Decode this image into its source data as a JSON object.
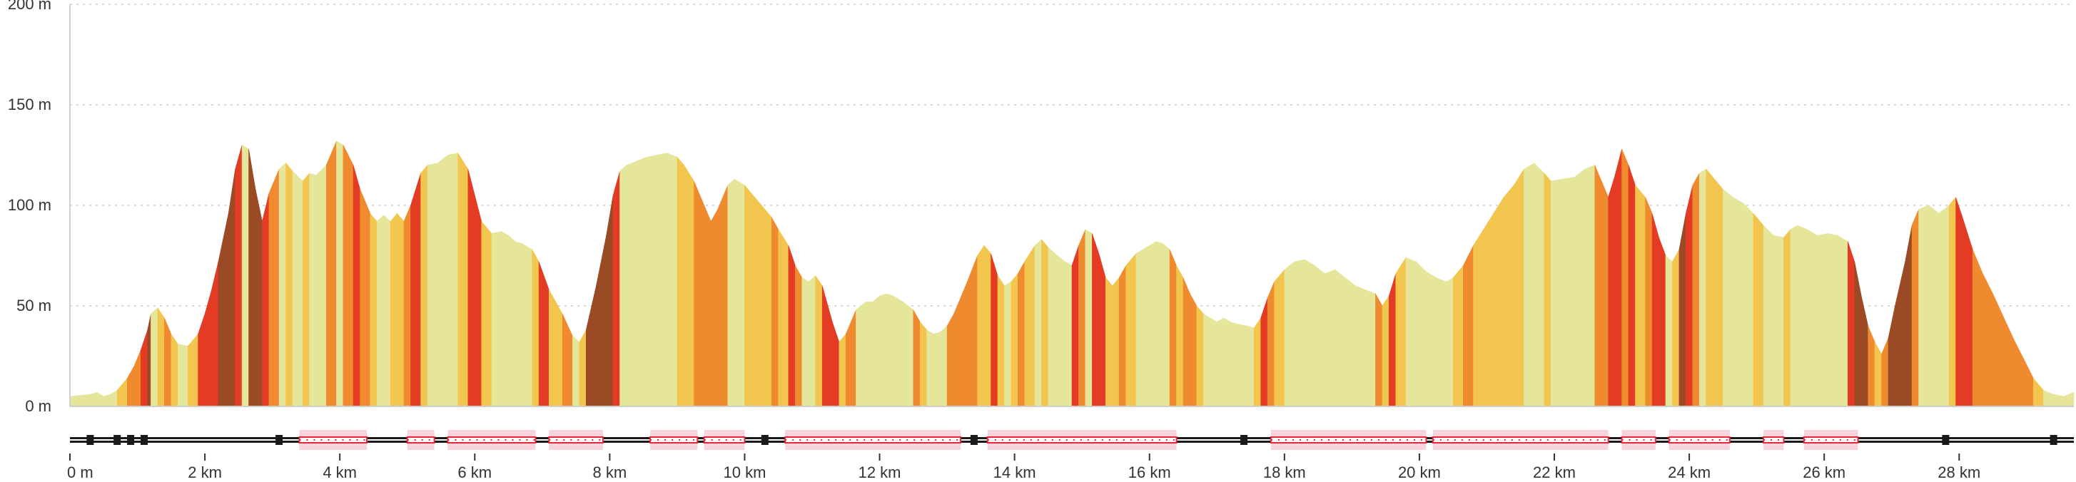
{
  "chart_data": {
    "type": "area",
    "title": "",
    "xlabel": "",
    "ylabel": "",
    "xlim": [
      0,
      29.7
    ],
    "ylim": [
      0,
      200
    ],
    "y_ticks": [
      {
        "value": 0,
        "label": "0 m"
      },
      {
        "value": 50,
        "label": "50 m"
      },
      {
        "value": 100,
        "label": "100 m"
      },
      {
        "value": 150,
        "label": "150 m"
      },
      {
        "value": 200,
        "label": "200 m"
      }
    ],
    "x_ticks": [
      {
        "value": 0,
        "label": "0 m"
      },
      {
        "value": 2,
        "label": "2 km"
      },
      {
        "value": 4,
        "label": "4 km"
      },
      {
        "value": 6,
        "label": "6 km"
      },
      {
        "value": 8,
        "label": "8 km"
      },
      {
        "value": 10,
        "label": "10 km"
      },
      {
        "value": 12,
        "label": "12 km"
      },
      {
        "value": 14,
        "label": "14 km"
      },
      {
        "value": 16,
        "label": "16 km"
      },
      {
        "value": 18,
        "label": "18 km"
      },
      {
        "value": 20,
        "label": "20 km"
      },
      {
        "value": 22,
        "label": "22 km"
      },
      {
        "value": 24,
        "label": "24 km"
      },
      {
        "value": 26,
        "label": "26 km"
      },
      {
        "value": 28,
        "label": "28 km"
      }
    ],
    "grid": true,
    "elevation_profile": [
      [
        0,
        5
      ],
      [
        0.3,
        6
      ],
      [
        0.4,
        7
      ],
      [
        0.5,
        5
      ],
      [
        0.6,
        6
      ],
      [
        0.7,
        8
      ],
      [
        0.85,
        14
      ],
      [
        0.95,
        20
      ],
      [
        1.05,
        28
      ],
      [
        1.15,
        38
      ],
      [
        1.2,
        46
      ],
      [
        1.3,
        49
      ],
      [
        1.4,
        44
      ],
      [
        1.5,
        36
      ],
      [
        1.6,
        31
      ],
      [
        1.75,
        30
      ],
      [
        1.9,
        36
      ],
      [
        2.0,
        46
      ],
      [
        2.1,
        58
      ],
      [
        2.2,
        72
      ],
      [
        2.35,
        96
      ],
      [
        2.45,
        118
      ],
      [
        2.55,
        130
      ],
      [
        2.65,
        128
      ],
      [
        2.75,
        108
      ],
      [
        2.85,
        92
      ],
      [
        2.95,
        106
      ],
      [
        3.1,
        118
      ],
      [
        3.2,
        121
      ],
      [
        3.3,
        117
      ],
      [
        3.45,
        112
      ],
      [
        3.55,
        116
      ],
      [
        3.65,
        115
      ],
      [
        3.8,
        120
      ],
      [
        3.95,
        132
      ],
      [
        4.05,
        130
      ],
      [
        4.2,
        120
      ],
      [
        4.3,
        108
      ],
      [
        4.45,
        96
      ],
      [
        4.55,
        92
      ],
      [
        4.65,
        95
      ],
      [
        4.75,
        92
      ],
      [
        4.85,
        96
      ],
      [
        4.95,
        92
      ],
      [
        5.05,
        100
      ],
      [
        5.2,
        116
      ],
      [
        5.3,
        120
      ],
      [
        5.45,
        121
      ],
      [
        5.6,
        125
      ],
      [
        5.75,
        126
      ],
      [
        5.9,
        118
      ],
      [
        6.0,
        105
      ],
      [
        6.1,
        92
      ],
      [
        6.25,
        86
      ],
      [
        6.4,
        87
      ],
      [
        6.5,
        85
      ],
      [
        6.6,
        82
      ],
      [
        6.7,
        81
      ],
      [
        6.85,
        78
      ],
      [
        6.95,
        72
      ],
      [
        7.1,
        58
      ],
      [
        7.3,
        46
      ],
      [
        7.45,
        35
      ],
      [
        7.55,
        32
      ],
      [
        7.65,
        38
      ],
      [
        7.8,
        60
      ],
      [
        7.95,
        85
      ],
      [
        8.05,
        105
      ],
      [
        8.15,
        117
      ],
      [
        8.25,
        120
      ],
      [
        8.4,
        122
      ],
      [
        8.55,
        124
      ],
      [
        8.7,
        125
      ],
      [
        8.85,
        126
      ],
      [
        9.0,
        124
      ],
      [
        9.1,
        120
      ],
      [
        9.25,
        112
      ],
      [
        9.4,
        100
      ],
      [
        9.5,
        92
      ],
      [
        9.6,
        98
      ],
      [
        9.75,
        110
      ],
      [
        9.85,
        113
      ],
      [
        10.0,
        110
      ],
      [
        10.1,
        106
      ],
      [
        10.25,
        100
      ],
      [
        10.4,
        94
      ],
      [
        10.5,
        88
      ],
      [
        10.65,
        80
      ],
      [
        10.75,
        70
      ],
      [
        10.85,
        64
      ],
      [
        10.95,
        62
      ],
      [
        11.05,
        65
      ],
      [
        11.15,
        60
      ],
      [
        11.3,
        42
      ],
      [
        11.4,
        32
      ],
      [
        11.5,
        36
      ],
      [
        11.65,
        48
      ],
      [
        11.8,
        52
      ],
      [
        11.9,
        52
      ],
      [
        12.0,
        55
      ],
      [
        12.1,
        56
      ],
      [
        12.2,
        55
      ],
      [
        12.35,
        52
      ],
      [
        12.5,
        48
      ],
      [
        12.6,
        42
      ],
      [
        12.7,
        38
      ],
      [
        12.8,
        36
      ],
      [
        12.9,
        37
      ],
      [
        13.0,
        40
      ],
      [
        13.1,
        46
      ],
      [
        13.2,
        54
      ],
      [
        13.3,
        62
      ],
      [
        13.45,
        75
      ],
      [
        13.55,
        80
      ],
      [
        13.65,
        76
      ],
      [
        13.75,
        65
      ],
      [
        13.85,
        60
      ],
      [
        13.95,
        62
      ],
      [
        14.05,
        66
      ],
      [
        14.15,
        72
      ],
      [
        14.3,
        80
      ],
      [
        14.4,
        83
      ],
      [
        14.5,
        79
      ],
      [
        14.6,
        76
      ],
      [
        14.75,
        72
      ],
      [
        14.85,
        70
      ],
      [
        14.95,
        80
      ],
      [
        15.05,
        88
      ],
      [
        15.15,
        86
      ],
      [
        15.25,
        76
      ],
      [
        15.35,
        64
      ],
      [
        15.45,
        60
      ],
      [
        15.55,
        64
      ],
      [
        15.65,
        70
      ],
      [
        15.8,
        76
      ],
      [
        15.95,
        79
      ],
      [
        16.1,
        82
      ],
      [
        16.2,
        81
      ],
      [
        16.3,
        78
      ],
      [
        16.4,
        70
      ],
      [
        16.5,
        64
      ],
      [
        16.6,
        56
      ],
      [
        16.7,
        50
      ],
      [
        16.8,
        46
      ],
      [
        16.9,
        44
      ],
      [
        17.0,
        42
      ],
      [
        17.1,
        44
      ],
      [
        17.2,
        42
      ],
      [
        17.3,
        41
      ],
      [
        17.45,
        40
      ],
      [
        17.55,
        39
      ],
      [
        17.65,
        44
      ],
      [
        17.75,
        54
      ],
      [
        17.85,
        62
      ],
      [
        18.0,
        68
      ],
      [
        18.15,
        72
      ],
      [
        18.3,
        73
      ],
      [
        18.45,
        70
      ],
      [
        18.6,
        66
      ],
      [
        18.75,
        68
      ],
      [
        18.9,
        64
      ],
      [
        19.05,
        60
      ],
      [
        19.2,
        58
      ],
      [
        19.35,
        56
      ],
      [
        19.45,
        50
      ],
      [
        19.55,
        55
      ],
      [
        19.65,
        66
      ],
      [
        19.8,
        74
      ],
      [
        19.95,
        72
      ],
      [
        20.1,
        67
      ],
      [
        20.25,
        64
      ],
      [
        20.4,
        62
      ],
      [
        20.5,
        64
      ],
      [
        20.65,
        70
      ],
      [
        20.8,
        80
      ],
      [
        20.95,
        88
      ],
      [
        21.1,
        96
      ],
      [
        21.25,
        104
      ],
      [
        21.4,
        110
      ],
      [
        21.55,
        118
      ],
      [
        21.7,
        121
      ],
      [
        21.85,
        116
      ],
      [
        21.95,
        112
      ],
      [
        22.1,
        113
      ],
      [
        22.3,
        114
      ],
      [
        22.45,
        118
      ],
      [
        22.6,
        120
      ],
      [
        22.7,
        112
      ],
      [
        22.8,
        104
      ],
      [
        22.9,
        115
      ],
      [
        23.0,
        128
      ],
      [
        23.1,
        120
      ],
      [
        23.2,
        110
      ],
      [
        23.35,
        104
      ],
      [
        23.45,
        96
      ],
      [
        23.55,
        84
      ],
      [
        23.65,
        75
      ],
      [
        23.75,
        72
      ],
      [
        23.85,
        78
      ],
      [
        23.95,
        96
      ],
      [
        24.05,
        110
      ],
      [
        24.15,
        116
      ],
      [
        24.25,
        118
      ],
      [
        24.35,
        114
      ],
      [
        24.5,
        108
      ],
      [
        24.65,
        104
      ],
      [
        24.8,
        101
      ],
      [
        24.95,
        96
      ],
      [
        25.1,
        90
      ],
      [
        25.25,
        85
      ],
      [
        25.4,
        84
      ],
      [
        25.5,
        88
      ],
      [
        25.6,
        90
      ],
      [
        25.75,
        88
      ],
      [
        25.9,
        85
      ],
      [
        26.05,
        86
      ],
      [
        26.2,
        85
      ],
      [
        26.35,
        82
      ],
      [
        26.45,
        72
      ],
      [
        26.55,
        55
      ],
      [
        26.65,
        40
      ],
      [
        26.75,
        32
      ],
      [
        26.85,
        26
      ],
      [
        26.95,
        34
      ],
      [
        27.05,
        50
      ],
      [
        27.2,
        72
      ],
      [
        27.3,
        90
      ],
      [
        27.4,
        98
      ],
      [
        27.55,
        100
      ],
      [
        27.7,
        96
      ],
      [
        27.85,
        100
      ],
      [
        27.95,
        104
      ],
      [
        28.05,
        94
      ],
      [
        28.2,
        78
      ],
      [
        28.35,
        66
      ],
      [
        28.5,
        56
      ],
      [
        28.65,
        45
      ],
      [
        28.8,
        34
      ],
      [
        28.95,
        24
      ],
      [
        29.1,
        14
      ],
      [
        29.25,
        8
      ],
      [
        29.4,
        6
      ],
      [
        29.55,
        5
      ],
      [
        29.7,
        7
      ]
    ],
    "steepness_colors": {
      "flat": "#e6e69b",
      "light": "#f2c64e",
      "moderate": "#ef8a2f",
      "steep": "#e43b24",
      "very_steep": "#9a4a24"
    },
    "surface_bar": {
      "colors": {
        "road": "#1a1a1a",
        "track": "#e8283a",
        "track_background": "#f7d3db"
      },
      "track_segments": [
        [
          3.4,
          4.4
        ],
        [
          5.0,
          5.4
        ],
        [
          5.6,
          6.9
        ],
        [
          7.1,
          7.9
        ],
        [
          8.6,
          9.3
        ],
        [
          9.4,
          10.0
        ],
        [
          10.6,
          13.2
        ],
        [
          13.6,
          16.4
        ],
        [
          17.8,
          20.1
        ],
        [
          20.2,
          22.8
        ],
        [
          23.0,
          23.5
        ],
        [
          23.7,
          24.6
        ],
        [
          25.1,
          25.4
        ],
        [
          25.7,
          26.5
        ]
      ],
      "road_markers": [
        0.3,
        0.7,
        0.9,
        1.1,
        3.1,
        3.8,
        5.2,
        6.0,
        7.4,
        9.0,
        10.3,
        11.3,
        13.4,
        14.8,
        16.3,
        17.4,
        19.2,
        20.0,
        21.6,
        23.2,
        24.1,
        25.2,
        26.2,
        27.8,
        29.4
      ]
    }
  }
}
